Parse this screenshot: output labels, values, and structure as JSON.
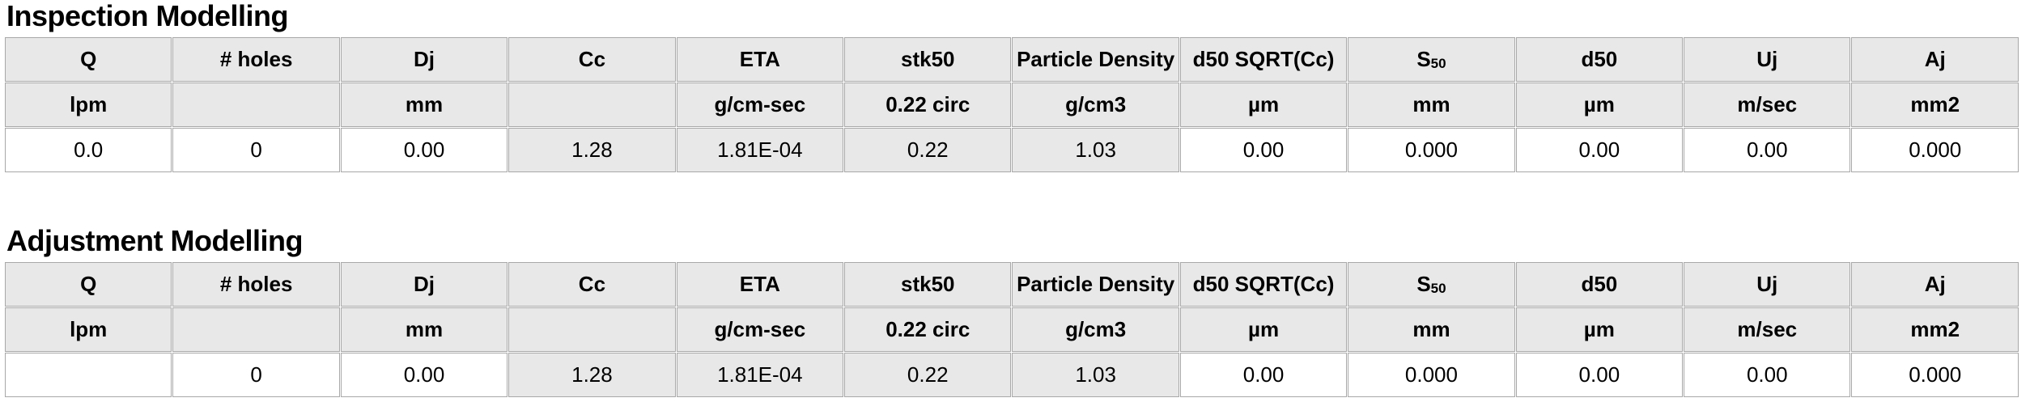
{
  "colors": {
    "cell_fill_gray": "#e8e8e8",
    "cell_fill_white": "#ffffff",
    "border": "#a8a8a8",
    "text": "#000000"
  },
  "tables": [
    {
      "title": "Inspection Modelling",
      "columns": [
        "Q",
        "# holes",
        "Dj",
        "Cc",
        "ETA",
        "stk50",
        "Particle Density",
        "d50 SQRT(Cc)",
        {
          "base": "S",
          "sub": "50"
        },
        "d50",
        "Uj",
        "Aj"
      ],
      "units": [
        "lpm",
        "",
        "mm",
        "",
        "g/cm-sec",
        "0.22 circ",
        "g/cm3",
        "µm",
        "mm",
        "µm",
        "m/sec",
        "mm2"
      ],
      "values": [
        "0.0",
        "0",
        "0.00",
        "1.28",
        "1.81E-04",
        "0.22",
        "1.03",
        "0.00",
        "0.000",
        "0.00",
        "0.00",
        "0.000"
      ]
    },
    {
      "title": "Adjustment Modelling",
      "columns": [
        "Q",
        "# holes",
        "Dj",
        "Cc",
        "ETA",
        "stk50",
        "Particle Density",
        "d50 SQRT(Cc)",
        {
          "base": "S",
          "sub": "50"
        },
        "d50",
        "Uj",
        "Aj"
      ],
      "units": [
        "lpm",
        "",
        "mm",
        "",
        "g/cm-sec",
        "0.22 circ",
        "g/cm3",
        "µm",
        "mm",
        "µm",
        "m/sec",
        "mm2"
      ],
      "values": [
        "",
        "0",
        "0.00",
        "1.28",
        "1.81E-04",
        "0.22",
        "1.03",
        "0.00",
        "0.000",
        "0.00",
        "0.00",
        "0.000"
      ]
    }
  ]
}
